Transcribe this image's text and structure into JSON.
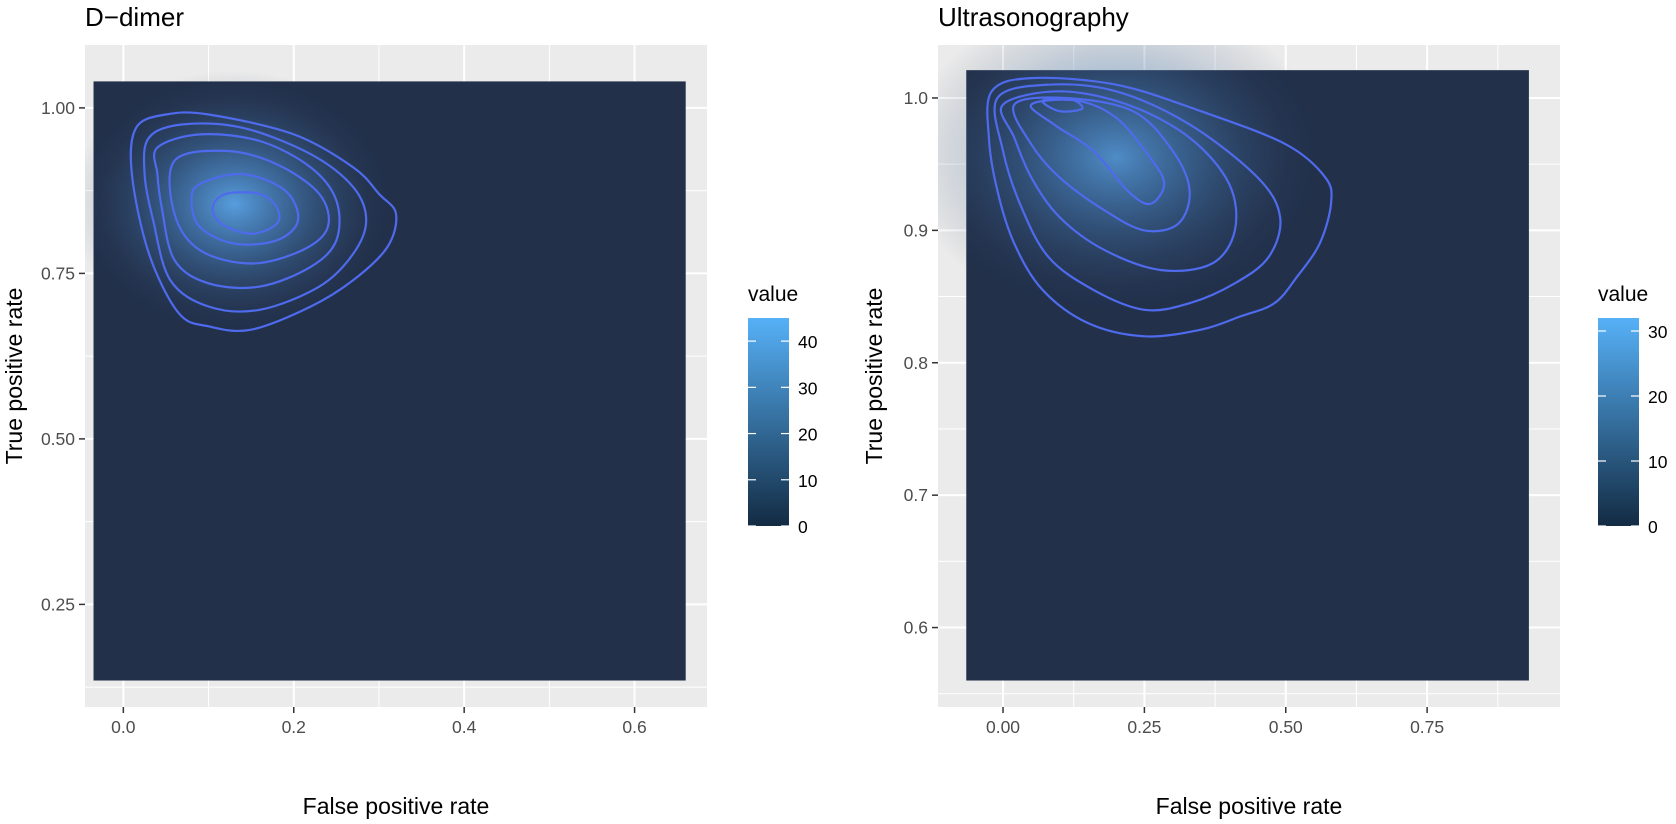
{
  "chart_data": [
    {
      "type": "heatmap",
      "title": "D−dimer",
      "xlabel": "False positive rate",
      "ylabel": "True positive rate",
      "xlim": [
        -0.045,
        0.685
      ],
      "ylim": [
        0.095,
        1.095
      ],
      "tile_xrange": [
        -0.035,
        0.66
      ],
      "tile_yrange": [
        0.135,
        1.04
      ],
      "x_ticks": [
        0.0,
        0.2,
        0.4,
        0.6
      ],
      "x_tick_labels": [
        "0.0",
        "0.2",
        "0.4",
        "0.6"
      ],
      "y_ticks": [
        0.25,
        0.5,
        0.75,
        1.0
      ],
      "y_tick_labels": [
        "0.25",
        "0.50",
        "0.75",
        "1.00"
      ],
      "grid": true,
      "density_peak": {
        "x": 0.13,
        "y": 0.855
      },
      "legend": {
        "title": "value",
        "placement": "right",
        "min": 0,
        "max": 45,
        "ticks": [
          0,
          10,
          20,
          30,
          40
        ],
        "tick_labels": [
          "0",
          "10",
          "20",
          "30",
          "40"
        ]
      },
      "contours": [
        [
          [
            0.015,
            0.97
          ],
          [
            0.05,
            0.99
          ],
          [
            0.1,
            0.99
          ],
          [
            0.2,
            0.96
          ],
          [
            0.27,
            0.91
          ],
          [
            0.3,
            0.87
          ],
          [
            0.32,
            0.84
          ],
          [
            0.31,
            0.79
          ],
          [
            0.27,
            0.74
          ],
          [
            0.22,
            0.7
          ],
          [
            0.15,
            0.665
          ],
          [
            0.1,
            0.67
          ],
          [
            0.065,
            0.69
          ],
          [
            0.03,
            0.78
          ],
          [
            0.01,
            0.9
          ]
        ],
        [
          [
            0.03,
            0.955
          ],
          [
            0.07,
            0.975
          ],
          [
            0.14,
            0.97
          ],
          [
            0.22,
            0.93
          ],
          [
            0.27,
            0.88
          ],
          [
            0.285,
            0.83
          ],
          [
            0.27,
            0.78
          ],
          [
            0.23,
            0.73
          ],
          [
            0.16,
            0.695
          ],
          [
            0.1,
            0.7
          ],
          [
            0.055,
            0.74
          ],
          [
            0.035,
            0.83
          ],
          [
            0.025,
            0.9
          ]
        ],
        [
          [
            0.04,
            0.94
          ],
          [
            0.09,
            0.96
          ],
          [
            0.16,
            0.95
          ],
          [
            0.22,
            0.91
          ],
          [
            0.25,
            0.86
          ],
          [
            0.25,
            0.8
          ],
          [
            0.22,
            0.76
          ],
          [
            0.16,
            0.73
          ],
          [
            0.1,
            0.735
          ],
          [
            0.06,
            0.77
          ],
          [
            0.045,
            0.85
          ],
          [
            0.04,
            0.9
          ]
        ],
        [
          [
            0.06,
            0.92
          ],
          [
            0.12,
            0.935
          ],
          [
            0.18,
            0.915
          ],
          [
            0.23,
            0.87
          ],
          [
            0.24,
            0.82
          ],
          [
            0.21,
            0.785
          ],
          [
            0.15,
            0.765
          ],
          [
            0.09,
            0.785
          ],
          [
            0.06,
            0.84
          ]
        ],
        [
          [
            0.09,
            0.885
          ],
          [
            0.14,
            0.9
          ],
          [
            0.19,
            0.875
          ],
          [
            0.205,
            0.83
          ],
          [
            0.18,
            0.8
          ],
          [
            0.13,
            0.795
          ],
          [
            0.09,
            0.82
          ],
          [
            0.08,
            0.86
          ]
        ],
        [
          [
            0.12,
            0.87
          ],
          [
            0.16,
            0.87
          ],
          [
            0.18,
            0.85
          ],
          [
            0.18,
            0.825
          ],
          [
            0.15,
            0.81
          ],
          [
            0.115,
            0.825
          ],
          [
            0.105,
            0.85
          ]
        ]
      ]
    },
    {
      "type": "heatmap",
      "title": "Ultrasonography",
      "xlabel": "False positive rate",
      "ylabel": "True positive rate",
      "xlim": [
        -0.115,
        0.985
      ],
      "ylim": [
        0.54,
        1.04
      ],
      "tile_xrange": [
        -0.065,
        0.93
      ],
      "tile_yrange": [
        0.56,
        1.021
      ],
      "x_ticks": [
        0.0,
        0.25,
        0.5,
        0.75
      ],
      "x_tick_labels": [
        "0.00",
        "0.25",
        "0.50",
        "0.75"
      ],
      "y_ticks": [
        0.6,
        0.7,
        0.8,
        0.9,
        1.0
      ],
      "y_tick_labels": [
        "0.6",
        "0.7",
        "0.8",
        "0.9",
        "1.0"
      ],
      "grid": true,
      "density_peak": {
        "x": 0.2,
        "y": 0.955
      },
      "legend": {
        "title": "value",
        "placement": "right",
        "min": 0,
        "max": 32,
        "ticks": [
          0,
          10,
          20,
          30
        ],
        "tick_labels": [
          "0",
          "10",
          "20",
          "30"
        ]
      },
      "contours": [
        [
          [
            -0.02,
            1.005
          ],
          [
            0.05,
            1.015
          ],
          [
            0.2,
            1.01
          ],
          [
            0.35,
            0.99
          ],
          [
            0.5,
            0.965
          ],
          [
            0.57,
            0.94
          ],
          [
            0.58,
            0.92
          ],
          [
            0.56,
            0.89
          ],
          [
            0.52,
            0.865
          ],
          [
            0.48,
            0.845
          ],
          [
            0.42,
            0.835
          ],
          [
            0.35,
            0.825
          ],
          [
            0.25,
            0.82
          ],
          [
            0.15,
            0.83
          ],
          [
            0.07,
            0.855
          ],
          [
            0.02,
            0.89
          ],
          [
            -0.01,
            0.93
          ],
          [
            -0.025,
            0.97
          ]
        ],
        [
          [
            -0.01,
            1.0
          ],
          [
            0.08,
            1.01
          ],
          [
            0.2,
            1.005
          ],
          [
            0.33,
            0.98
          ],
          [
            0.45,
            0.94
          ],
          [
            0.49,
            0.91
          ],
          [
            0.47,
            0.88
          ],
          [
            0.41,
            0.86
          ],
          [
            0.33,
            0.845
          ],
          [
            0.25,
            0.84
          ],
          [
            0.16,
            0.855
          ],
          [
            0.08,
            0.88
          ],
          [
            0.03,
            0.92
          ],
          [
            0.0,
            0.96
          ]
        ],
        [
          [
            0.0,
            0.995
          ],
          [
            0.1,
            1.005
          ],
          [
            0.22,
            0.995
          ],
          [
            0.33,
            0.97
          ],
          [
            0.4,
            0.935
          ],
          [
            0.41,
            0.9
          ],
          [
            0.37,
            0.875
          ],
          [
            0.28,
            0.87
          ],
          [
            0.18,
            0.885
          ],
          [
            0.1,
            0.91
          ],
          [
            0.05,
            0.94
          ],
          [
            0.02,
            0.97
          ]
        ],
        [
          [
            0.02,
            0.995
          ],
          [
            0.11,
            1.0
          ],
          [
            0.23,
            0.99
          ],
          [
            0.3,
            0.96
          ],
          [
            0.33,
            0.93
          ],
          [
            0.31,
            0.905
          ],
          [
            0.25,
            0.9
          ],
          [
            0.18,
            0.915
          ],
          [
            0.1,
            0.94
          ],
          [
            0.05,
            0.965
          ]
        ],
        [
          [
            0.05,
            0.995
          ],
          [
            0.13,
            0.998
          ],
          [
            0.2,
            0.985
          ],
          [
            0.26,
            0.955
          ],
          [
            0.285,
            0.935
          ],
          [
            0.26,
            0.92
          ],
          [
            0.22,
            0.93
          ],
          [
            0.16,
            0.96
          ],
          [
            0.09,
            0.98
          ]
        ],
        [
          [
            0.07,
            0.998
          ],
          [
            0.12,
            0.999
          ],
          [
            0.14,
            0.992
          ],
          [
            0.1,
            0.99
          ]
        ]
      ]
    }
  ]
}
